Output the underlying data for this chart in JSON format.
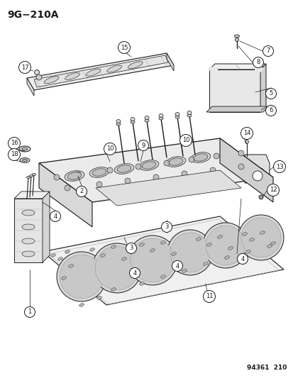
{
  "title": "9G−210A",
  "watermark": "94361  210",
  "bg_color": "#ffffff",
  "fig_width": 4.14,
  "fig_height": 5.33,
  "dpi": 100,
  "lc": "#1a1a1a",
  "fc_light": "#f2f2f2",
  "fc_mid": "#e0e0e0",
  "fc_dark": "#c8c8c8",
  "fc_darker": "#b0b0b0"
}
